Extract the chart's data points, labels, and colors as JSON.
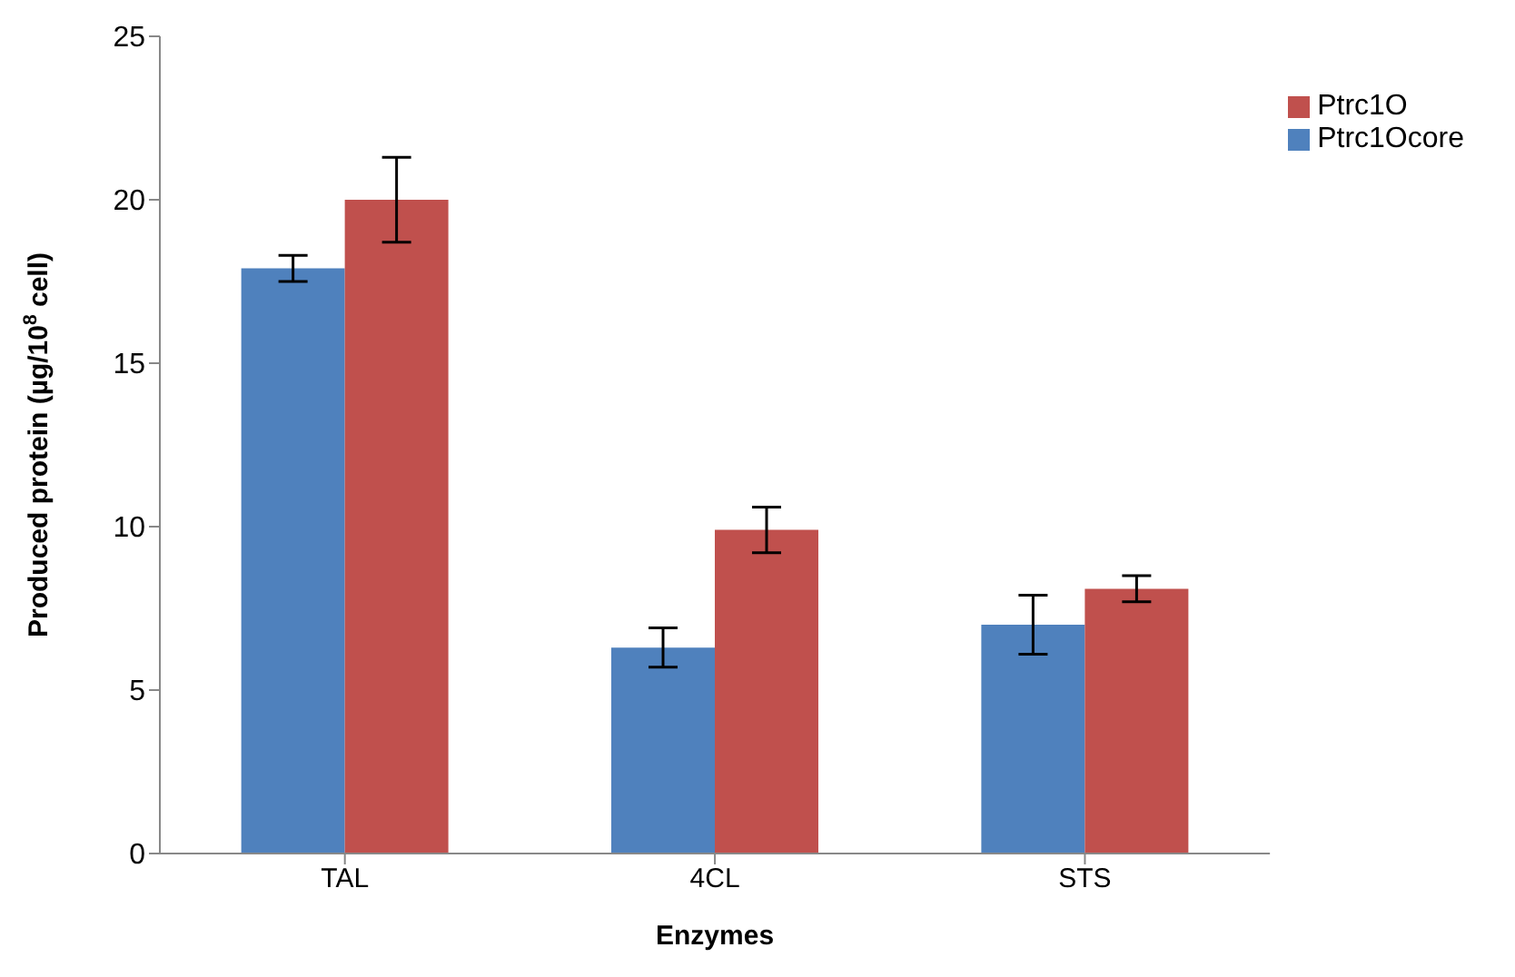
{
  "chart_data": {
    "type": "bar",
    "xlabel": "Enzymes",
    "ylabel": "Produced protein (µg/10$^{8}$ cell)",
    "categories": [
      "TAL",
      "4CL",
      "STS"
    ],
    "series": [
      {
        "name": "Ptrc1Ocore",
        "color": "#4f81bd",
        "values": [
          17.9,
          6.3,
          7.0
        ],
        "errors": [
          0.4,
          0.6,
          0.9
        ]
      },
      {
        "name": "Ptrc1O",
        "color": "#c0504d",
        "values": [
          20.0,
          9.9,
          8.1
        ],
        "errors": [
          1.3,
          0.7,
          0.4
        ]
      }
    ],
    "ylim": [
      0,
      25
    ],
    "yticks": [
      0,
      5,
      10,
      15,
      20,
      25
    ],
    "grid": false,
    "legend": "top right"
  }
}
